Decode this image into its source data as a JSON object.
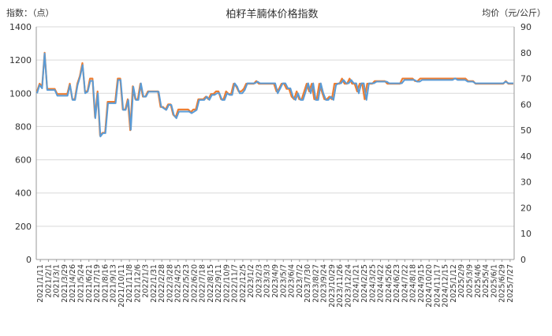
{
  "chart_data": {
    "type": "line",
    "title": "柏籽羊腩体价格指数",
    "left_axis_label": "指数：（点）",
    "right_axis_label": "均价（元/公斤）",
    "ylim_left": [
      0,
      1400
    ],
    "ylim_right": [
      0,
      90
    ],
    "y_ticks_left": [
      0,
      200,
      400,
      600,
      800,
      1000,
      1200,
      1400
    ],
    "y_ticks_right": [
      0,
      10,
      20,
      30,
      40,
      50,
      60,
      70,
      80,
      90
    ],
    "grid": true,
    "colors": {
      "index_line": "#5b9bd5",
      "price_line": "#ed7d31",
      "axis": "#999999",
      "grid": "#d9d9d9"
    },
    "x_labels": [
      "2021/1/11",
      "2021/2/1",
      "2021/3/1",
      "2021/3/29",
      "2021/4/26",
      "2021/5/24",
      "2021/6/21",
      "2021/7/19",
      "2021/8/16",
      "2021/9/13",
      "2021/10/11",
      "2021/11/8",
      "2021/12/6",
      "2022/1/3",
      "2022/1/31",
      "2022/2/28",
      "2022/3/28",
      "2022/4/25",
      "2022/5/23",
      "2022/6/20",
      "2022/7/18",
      "2022/8/15",
      "2022/9/11",
      "2022/10/9",
      "2022/11/7",
      "2022/12/5",
      "2023/1/2",
      "2023/2/3",
      "2023/3/3",
      "2023/4/9",
      "2023/5/7",
      "2023/6/4",
      "2023/7/2",
      "2023/7/30",
      "2023/8/27",
      "2023/9/24",
      "2023/10/29",
      "2023/11/26",
      "2023/12/24",
      "2024/1/21",
      "2024/2/25",
      "2024/3/25",
      "2024/4/22",
      "2024/5/26",
      "2024/6/23",
      "2024/7/22",
      "2024/8/18",
      "2024/9/15",
      "2024/10/20",
      "2024/11/17",
      "2024/12/15",
      "2025/1/12",
      "2025/2/9",
      "2025/3/9",
      "2025/4/6",
      "2025/5/4",
      "2025/6/1",
      "2025/6/29",
      "2025/7/27"
    ],
    "series": [
      {
        "key": "index",
        "values": [
          1000,
          1050,
          1030,
          1240,
          1020,
          1020,
          1020,
          1020,
          985,
          985,
          985,
          985,
          985,
          1050,
          960,
          960,
          1050,
          1100,
          1170,
          1000,
          1010,
          1075,
          1075,
          850,
          1000,
          740,
          760,
          760,
          940,
          940,
          940,
          940,
          1080,
          1080,
          900,
          900,
          960,
          780,
          1040,
          960,
          960,
          1060,
          980,
          980,
          1010,
          1010,
          1010,
          1010,
          1010,
          920,
          910,
          900,
          930,
          930,
          870,
          850,
          890,
          890,
          890,
          890,
          890,
          880,
          890,
          900,
          960,
          960,
          960,
          980,
          960,
          990,
          990,
          1000,
          1000,
          960,
          960,
          1000,
          990,
          990,
          1060,
          1040,
          1000,
          1000,
          1020,
          1060,
          1060,
          1060,
          1060,
          1070,
          1060,
          1060,
          1060,
          1060,
          1060,
          1060,
          1060,
          1000,
          1030,
          1060,
          1060,
          1030,
          1030,
          980,
          960,
          1000,
          960,
          960,
          1010,
          1060,
          1000,
          1060,
          960,
          960,
          1060,
          1000,
          960,
          960,
          980,
          960,
          1050,
          1060,
          1060,
          1080,
          1060,
          1060,
          1080,
          1060,
          1060,
          1000,
          1060,
          1060,
          960,
          1060,
          1060,
          1060,
          1070,
          1070,
          1070,
          1070,
          1070,
          1060,
          1060,
          1060,
          1060,
          1060,
          1060,
          1080,
          1080,
          1080,
          1080,
          1080,
          1070,
          1070,
          1080,
          1080,
          1080,
          1080,
          1080,
          1080,
          1080,
          1080,
          1080,
          1080,
          1080,
          1080,
          1080,
          1090,
          1080,
          1080,
          1080,
          1080,
          1070,
          1070,
          1070,
          1060,
          1060,
          1060,
          1060,
          1060,
          1060,
          1060,
          1060,
          1060,
          1060,
          1060,
          1060,
          1070,
          1060,
          1060,
          1060
        ]
      },
      {
        "key": "price",
        "values": [
          65,
          68,
          67,
          80,
          66,
          66,
          66,
          66,
          64,
          64,
          64,
          64,
          64,
          68,
          62,
          62,
          68,
          71,
          76,
          65,
          65,
          70,
          70,
          55,
          65,
          48,
          49,
          49,
          61,
          61,
          61,
          61,
          70,
          70,
          58,
          58,
          62,
          50,
          67,
          62,
          62,
          68,
          63,
          63,
          65,
          65,
          65,
          65,
          65,
          59,
          59,
          58,
          60,
          60,
          56,
          55,
          58,
          58,
          58,
          58,
          58,
          57,
          58,
          58,
          62,
          62,
          62,
          63,
          62,
          64,
          64,
          65,
          65,
          62,
          62,
          65,
          64,
          64,
          68,
          67,
          65,
          65,
          66,
          68,
          68,
          68,
          68,
          69,
          68,
          68,
          68,
          68,
          68,
          68,
          68,
          65,
          66,
          68,
          68,
          66,
          66,
          63,
          62,
          65,
          62,
          62,
          65,
          68,
          65,
          68,
          62,
          62,
          68,
          65,
          62,
          62,
          63,
          62,
          68,
          68,
          68,
          70,
          68,
          68,
          70,
          68,
          68,
          65,
          68,
          68,
          62,
          68,
          68,
          68,
          69,
          69,
          69,
          69,
          69,
          68,
          68,
          68,
          68,
          68,
          68,
          70,
          70,
          70,
          70,
          70,
          69,
          69,
          70,
          70,
          70,
          70,
          70,
          70,
          70,
          70,
          70,
          70,
          70,
          70,
          70,
          70,
          70,
          70,
          70,
          70,
          70,
          69,
          69,
          69,
          68,
          68,
          68,
          68,
          68,
          68,
          68,
          68,
          68,
          68,
          68,
          68,
          69,
          68,
          68,
          68
        ]
      }
    ]
  }
}
